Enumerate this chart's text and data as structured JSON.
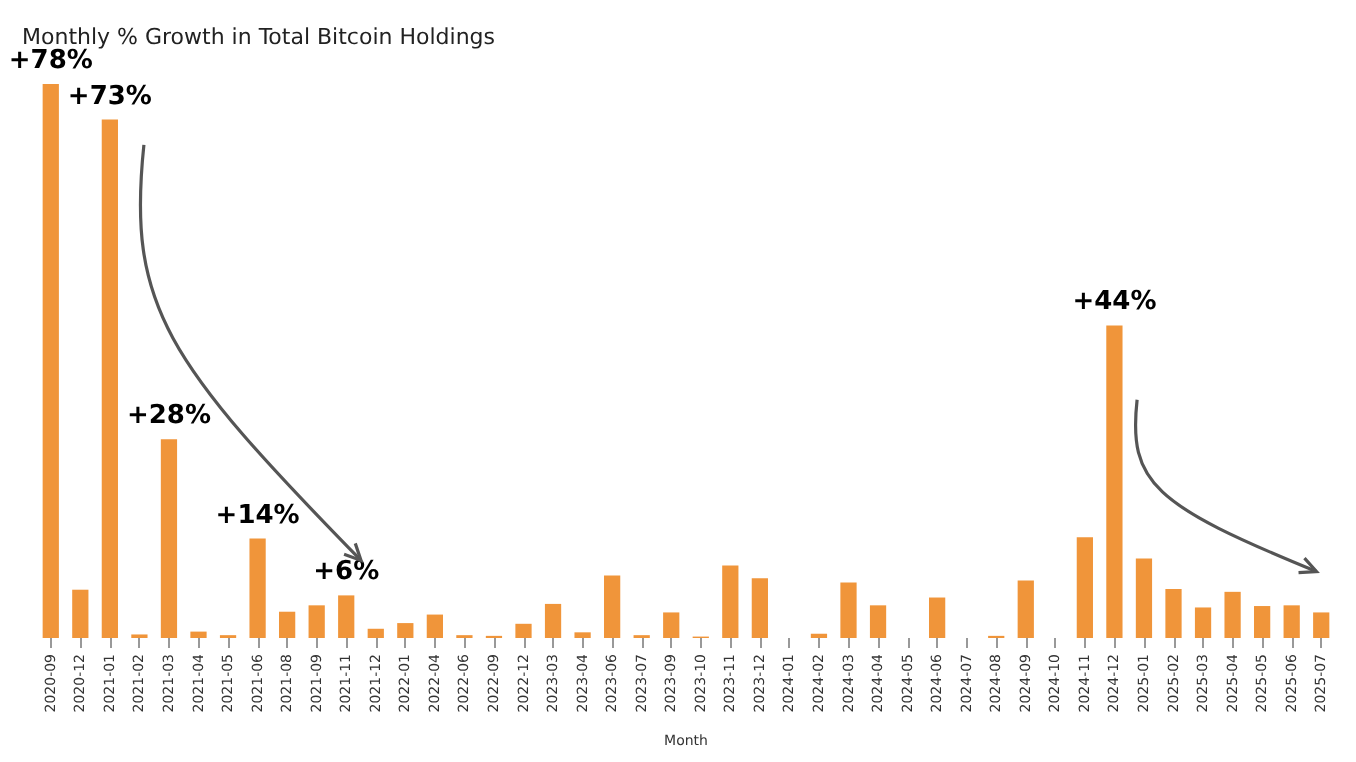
{
  "chart_data": {
    "type": "bar",
    "title": "Monthly % Growth in Total Bitcoin Holdings",
    "xlabel": "Month",
    "categories": [
      "2020-09",
      "2020-12",
      "2021-01",
      "2021-02",
      "2021-03",
      "2021-04",
      "2021-05",
      "2021-06",
      "2021-08",
      "2021-09",
      "2021-11",
      "2021-12",
      "2022-01",
      "2022-04",
      "2022-06",
      "2022-09",
      "2022-12",
      "2023-03",
      "2023-04",
      "2023-06",
      "2023-07",
      "2023-09",
      "2023-10",
      "2023-11",
      "2023-12",
      "2024-01",
      "2024-02",
      "2024-03",
      "2024-04",
      "2024-05",
      "2024-06",
      "2024-07",
      "2024-08",
      "2024-09",
      "2024-10",
      "2024-11",
      "2024-12",
      "2025-01",
      "2025-02",
      "2025-03",
      "2025-04",
      "2025-05",
      "2025-06",
      "2025-07"
    ],
    "values": [
      78,
      6.8,
      73,
      0.5,
      28,
      0.9,
      0.4,
      14,
      3.7,
      4.6,
      6,
      1.3,
      2.1,
      3.3,
      0.4,
      0.3,
      2.0,
      4.8,
      0.8,
      8.8,
      0.4,
      3.6,
      0.2,
      10.2,
      8.4,
      0,
      0.6,
      7.8,
      4.6,
      0,
      5.7,
      0,
      0.3,
      8.1,
      0,
      14.2,
      44,
      11.2,
      6.9,
      4.3,
      6.5,
      4.5,
      4.6,
      3.6
    ],
    "value_labels": [
      "+78%",
      null,
      "+73%",
      null,
      "+28%",
      null,
      null,
      "+14%",
      null,
      null,
      "+6%",
      null,
      null,
      null,
      null,
      null,
      null,
      null,
      null,
      null,
      null,
      null,
      null,
      null,
      null,
      null,
      null,
      null,
      null,
      null,
      null,
      null,
      null,
      null,
      null,
      null,
      "+44%",
      null,
      null,
      null,
      null,
      null,
      null,
      null
    ],
    "color": "#f0953a"
  }
}
